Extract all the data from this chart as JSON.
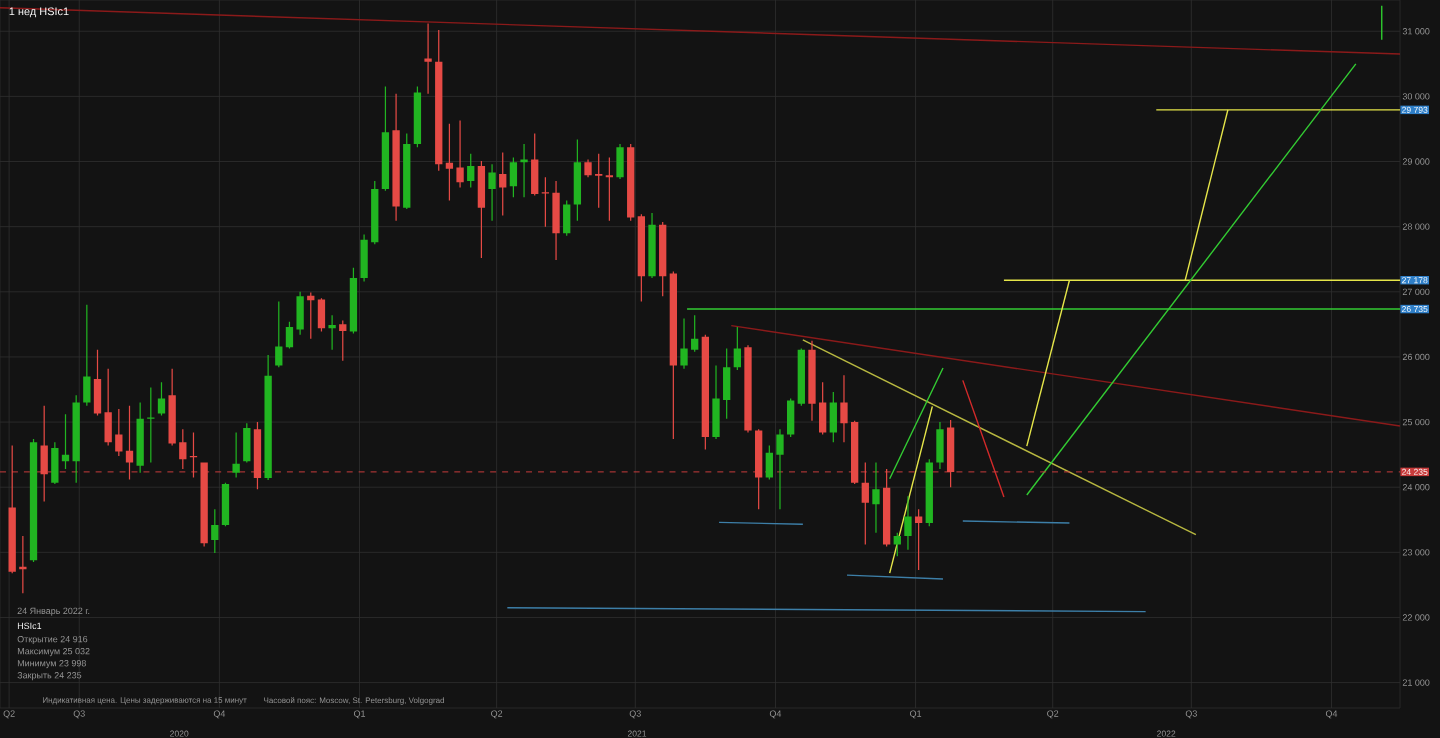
{
  "chart_data": {
    "type": "candlestick",
    "title": "1 нед HSIc1",
    "x": [
      "2020-05-18",
      "2020-05-25",
      "2020-06-01",
      "2020-06-08",
      "2020-06-15",
      "2020-06-22",
      "2020-06-29",
      "2020-07-06",
      "2020-07-13",
      "2020-07-20",
      "2020-07-27",
      "2020-08-03",
      "2020-08-10",
      "2020-08-17",
      "2020-08-24",
      "2020-08-31",
      "2020-09-07",
      "2020-09-14",
      "2020-09-21",
      "2020-09-28",
      "2020-10-05",
      "2020-10-12",
      "2020-10-19",
      "2020-10-26",
      "2020-11-02",
      "2020-11-09",
      "2020-11-16",
      "2020-11-23",
      "2020-11-30",
      "2020-12-07",
      "2020-12-14",
      "2020-12-21",
      "2020-12-28",
      "2021-01-04",
      "2021-01-11",
      "2021-01-18",
      "2021-01-25",
      "2021-02-01",
      "2021-02-08",
      "2021-02-15",
      "2021-02-22",
      "2021-03-01",
      "2021-03-08",
      "2021-03-15",
      "2021-03-22",
      "2021-03-29",
      "2021-04-05",
      "2021-04-12",
      "2021-04-19",
      "2021-04-26",
      "2021-05-03",
      "2021-05-10",
      "2021-05-17",
      "2021-05-24",
      "2021-05-31",
      "2021-06-07",
      "2021-06-14",
      "2021-06-21",
      "2021-06-28",
      "2021-07-05",
      "2021-07-12",
      "2021-07-19",
      "2021-07-26",
      "2021-08-02",
      "2021-08-09",
      "2021-08-16",
      "2021-08-23",
      "2021-08-30",
      "2021-09-06",
      "2021-09-13",
      "2021-09-20",
      "2021-09-27",
      "2021-10-04",
      "2021-10-11",
      "2021-10-18",
      "2021-10-25",
      "2021-11-01",
      "2021-11-08",
      "2021-11-15",
      "2021-11-22",
      "2021-11-29",
      "2021-12-06",
      "2021-12-13",
      "2021-12-20",
      "2021-12-27",
      "2022-01-03",
      "2022-01-10",
      "2022-01-17",
      "2022-01-24"
    ],
    "ohlc": [
      [
        23690,
        24640,
        22680,
        22700
      ],
      [
        22780,
        23250,
        22370,
        22740
      ],
      [
        22880,
        24740,
        22850,
        24690
      ],
      [
        24640,
        25250,
        23780,
        24200
      ],
      [
        24070,
        24690,
        24050,
        24600
      ],
      [
        24400,
        25120,
        24280,
        24500
      ],
      [
        24400,
        25410,
        24070,
        25300
      ],
      [
        25300,
        26800,
        25250,
        25700
      ],
      [
        25660,
        26110,
        25100,
        25130
      ],
      [
        25150,
        25820,
        24640,
        24690
      ],
      [
        24810,
        25200,
        24480,
        24550
      ],
      [
        24560,
        25250,
        24120,
        24380
      ],
      [
        24330,
        25300,
        24220,
        25050
      ],
      [
        25050,
        25530,
        24380,
        25070
      ],
      [
        25130,
        25610,
        25100,
        25360
      ],
      [
        25410,
        25820,
        24640,
        24670
      ],
      [
        24690,
        24890,
        24280,
        24430
      ],
      [
        24480,
        24840,
        24150,
        24460
      ],
      [
        24380,
        24380,
        23090,
        23140
      ],
      [
        23190,
        23660,
        22990,
        23420
      ],
      [
        23420,
        24070,
        23400,
        24050
      ],
      [
        24220,
        24840,
        24150,
        24360
      ],
      [
        24400,
        24980,
        24380,
        24910
      ],
      [
        24890,
        25000,
        23970,
        24140
      ],
      [
        24140,
        26030,
        24110,
        25710
      ],
      [
        25870,
        26850,
        25840,
        26160
      ],
      [
        26150,
        26540,
        26130,
        26460
      ],
      [
        26420,
        27000,
        26340,
        26930
      ],
      [
        26940,
        26990,
        26280,
        26870
      ],
      [
        26880,
        26900,
        26390,
        26440
      ],
      [
        26440,
        26640,
        26110,
        26490
      ],
      [
        26500,
        26560,
        25940,
        26400
      ],
      [
        26390,
        27370,
        26360,
        27210
      ],
      [
        27210,
        27880,
        27160,
        27800
      ],
      [
        27760,
        28700,
        27730,
        28580
      ],
      [
        28580,
        30150,
        28550,
        29450
      ],
      [
        29480,
        30040,
        28090,
        28310
      ],
      [
        28290,
        29430,
        28270,
        29270
      ],
      [
        29270,
        30150,
        29220,
        30060
      ],
      [
        30580,
        31120,
        30040,
        30530
      ],
      [
        30530,
        31020,
        28860,
        28960
      ],
      [
        28980,
        29580,
        28400,
        28890
      ],
      [
        28910,
        29630,
        28600,
        28680
      ],
      [
        28700,
        29120,
        28600,
        28930
      ],
      [
        28930,
        29010,
        27520,
        28290
      ],
      [
        28580,
        28960,
        28090,
        28830
      ],
      [
        28810,
        29140,
        28170,
        28600
      ],
      [
        28620,
        29060,
        28450,
        28990
      ],
      [
        28990,
        29270,
        28450,
        29030
      ],
      [
        29030,
        29430,
        28480,
        28500
      ],
      [
        28530,
        28760,
        28000,
        28510
      ],
      [
        28520,
        28700,
        27490,
        27900
      ],
      [
        27900,
        28400,
        27860,
        28340
      ],
      [
        28340,
        29340,
        28090,
        28990
      ],
      [
        28990,
        29030,
        28760,
        28790
      ],
      [
        28810,
        29120,
        28290,
        28780
      ],
      [
        28790,
        29060,
        28090,
        28760
      ],
      [
        28760,
        29270,
        28730,
        29220
      ],
      [
        29220,
        29270,
        28090,
        28140
      ],
      [
        28160,
        28190,
        26850,
        27240
      ],
      [
        27240,
        28210,
        27210,
        28030
      ],
      [
        28030,
        28070,
        26930,
        27240
      ],
      [
        27280,
        27310,
        24740,
        25870
      ],
      [
        25870,
        26590,
        25820,
        26130
      ],
      [
        26110,
        26640,
        26080,
        26280
      ],
      [
        26310,
        26340,
        24580,
        24770
      ],
      [
        24770,
        25870,
        24740,
        25360
      ],
      [
        25340,
        26130,
        25050,
        25840
      ],
      [
        25840,
        26460,
        25800,
        26130
      ],
      [
        26150,
        26180,
        24840,
        24870
      ],
      [
        24870,
        24890,
        23660,
        24150
      ],
      [
        24150,
        24640,
        24120,
        24530
      ],
      [
        24500,
        24890,
        23660,
        24810
      ],
      [
        24810,
        25360,
        24770,
        25330
      ],
      [
        25280,
        26130,
        25250,
        26110
      ],
      [
        26110,
        26250,
        25020,
        25280
      ],
      [
        25300,
        25610,
        24810,
        24840
      ],
      [
        24840,
        25460,
        24690,
        25300
      ],
      [
        25300,
        25720,
        24690,
        24980
      ],
      [
        25000,
        25020,
        24050,
        24070
      ],
      [
        24070,
        24380,
        23120,
        23760
      ],
      [
        23740,
        24380,
        23300,
        23970
      ],
      [
        23990,
        24280,
        23090,
        23120
      ],
      [
        23120,
        23300,
        22940,
        23250
      ],
      [
        23250,
        23860,
        23040,
        23550
      ],
      [
        23550,
        23660,
        22730,
        23450
      ],
      [
        23450,
        24430,
        23400,
        24380
      ],
      [
        24380,
        25000,
        24280,
        24890
      ],
      [
        24916,
        25032,
        23998,
        24235
      ]
    ],
    "colors": [
      "#e64a45",
      "#e64a45",
      "#21b521",
      "#e64a45",
      "#21b521",
      "#21b521",
      "#21b521",
      "#21b521",
      "#e64a45",
      "#e64a45",
      "#e64a45",
      "#e64a45",
      "#21b521",
      "#21b521",
      "#21b521",
      "#e64a45",
      "#e64a45",
      "#e64a45",
      "#e64a45",
      "#21b521",
      "#21b521",
      "#21b521",
      "#21b521",
      "#e64a45",
      "#21b521",
      "#21b521",
      "#21b521",
      "#21b521",
      "#e64a45",
      "#e64a45",
      "#21b521",
      "#e64a45",
      "#21b521",
      "#21b521",
      "#21b521",
      "#21b521",
      "#e64a45",
      "#21b521",
      "#21b521",
      "#e64a45",
      "#e64a45",
      "#e64a45",
      "#e64a45",
      "#21b521",
      "#e64a45",
      "#21b521",
      "#e64a45",
      "#21b521",
      "#21b521",
      "#e64a45",
      "#e64a45",
      "#e64a45",
      "#21b521",
      "#21b521",
      "#e64a45",
      "#e64a45",
      "#e64a45",
      "#21b521",
      "#e64a45",
      "#e64a45",
      "#21b521",
      "#e64a45",
      "#e64a45",
      "#21b521",
      "#21b521",
      "#e64a45",
      "#21b521",
      "#21b521",
      "#21b521",
      "#e64a45",
      "#e64a45",
      "#21b521",
      "#21b521",
      "#21b521",
      "#21b521",
      "#e64a45",
      "#e64a45",
      "#21b521",
      "#e64a45",
      "#e64a45",
      "#e64a45",
      "#21b521",
      "#e64a45",
      "#21b521",
      "#21b521",
      "#e64a45",
      "#21b521",
      "#21b521",
      "#e64a45"
    ],
    "series": [
      {
        "type": "line",
        "color": "#8b1a1a",
        "x": [
          "2020-05-10",
          "2022-11-15"
        ],
        "values": [
          31360,
          30650
        ]
      },
      {
        "type": "line",
        "color": "#2ecc2e",
        "x": [
          "2022-11-03",
          "2022-11-03"
        ],
        "values": [
          31390,
          30870
        ]
      },
      {
        "type": "line",
        "color": "#8b1a1a",
        "x": [
          "2021-09-02",
          "2022-11-15"
        ],
        "values": [
          26480,
          24940
        ]
      },
      {
        "type": "line",
        "color": "#33cc33",
        "name": "26 735",
        "x": [
          "2021-08-04",
          "2022-11-15"
        ],
        "values": [
          26735,
          26735
        ]
      },
      {
        "type": "line",
        "color": "#e6e64a",
        "name": "27 178",
        "x": [
          "2022-02-28",
          "2022-11-15"
        ],
        "values": [
          27178,
          27178
        ]
      },
      {
        "type": "line",
        "color": "#e6e64a",
        "name": "29 793",
        "x": [
          "2022-06-08",
          "2022-11-15"
        ],
        "values": [
          29793,
          29793
        ]
      },
      {
        "type": "line",
        "color": "#e6e64a",
        "x": [
          "2022-03-15",
          "2022-04-12"
        ],
        "values": [
          24630,
          27178
        ]
      },
      {
        "type": "line",
        "color": "#e6e64a",
        "x": [
          "2022-06-27",
          "2022-07-25"
        ],
        "values": [
          27178,
          29793
        ]
      },
      {
        "type": "line",
        "color": "#e6e64a",
        "x": [
          "2021-12-15",
          "2022-01-12"
        ],
        "values": [
          22680,
          25240
        ]
      },
      {
        "type": "line",
        "color": "#b8b840",
        "x": [
          "2021-10-19",
          "2022-07-04"
        ],
        "values": [
          26260,
          23270
        ]
      },
      {
        "type": "line",
        "color": "#33cc33",
        "x": [
          "2022-03-15",
          "2022-10-17"
        ],
        "values": [
          23880,
          30500
        ]
      },
      {
        "type": "line",
        "color": "#33cc33",
        "x": [
          "2021-12-15",
          "2022-01-19"
        ],
        "values": [
          24130,
          25830
        ]
      },
      {
        "type": "line",
        "color": "#d42a2a",
        "x": [
          "2022-02-01",
          "2022-02-28"
        ],
        "values": [
          25640,
          23850
        ]
      },
      {
        "type": "line",
        "color": "#3d7fa8",
        "x": [
          "2021-08-25",
          "2021-10-19"
        ],
        "values": [
          23460,
          23430
        ]
      },
      {
        "type": "line",
        "color": "#3d7fa8",
        "x": [
          "2021-11-17",
          "2022-01-19"
        ],
        "values": [
          22650,
          22590
        ]
      },
      {
        "type": "line",
        "color": "#3d7fa8",
        "x": [
          "2022-02-01",
          "2022-04-12"
        ],
        "values": [
          23480,
          23450
        ]
      },
      {
        "type": "line",
        "color": "#3d7fa8",
        "x": [
          "2021-04-08",
          "2022-06-01"
        ],
        "values": [
          22150,
          22090
        ]
      }
    ],
    "ref_lines": [
      {
        "axis": "y",
        "value": 24235,
        "label": "24 235",
        "color": "#c83c3c",
        "line_style": "dashed"
      }
    ],
    "xlim": [
      "2020-05-10",
      "2022-11-15"
    ],
    "ylim": [
      20610,
      31480
    ],
    "xticks": [
      {
        "value": "2020-05-16",
        "label": "Q2"
      },
      {
        "value": "2020-07-01",
        "label": "Q3"
      },
      {
        "value": "2020-10-01",
        "label": "Q4"
      },
      {
        "value": "2021-01-01",
        "label": "Q1"
      },
      {
        "value": "2021-04-01",
        "label": "Q2"
      },
      {
        "value": "2021-07-01",
        "label": "Q3"
      },
      {
        "value": "2021-10-01",
        "label": "Q4"
      },
      {
        "value": "2022-01-01",
        "label": "Q1"
      },
      {
        "value": "2022-04-01",
        "label": "Q2"
      },
      {
        "value": "2022-07-01",
        "label": "Q3"
      },
      {
        "value": "2022-10-01",
        "label": "Q4"
      }
    ],
    "yticks": [
      {
        "value": 21000,
        "label": "21 000"
      },
      {
        "value": 22000,
        "label": "22 000"
      },
      {
        "value": 23000,
        "label": "23 000"
      },
      {
        "value": 24000,
        "label": "24 000"
      },
      {
        "value": 25000,
        "label": "25 000"
      },
      {
        "value": 26000,
        "label": "26 000"
      },
      {
        "value": 27000,
        "label": "27 000"
      },
      {
        "value": 28000,
        "label": "28 000"
      },
      {
        "value": 29000,
        "label": "29 000"
      },
      {
        "value": 30000,
        "label": "30 000"
      },
      {
        "value": 31000,
        "label": "31 000"
      }
    ],
    "grid": true,
    "annotations": [
      "24 Январь 2022 г.",
      "HSIc1",
      "Открытие 24 916",
      "Максимум 25 032",
      "Минимум 23 998",
      "Закрыть 24 235",
      "Индикативная цена. Цены задерживаются на 15 минут",
      "Часовой пояс: Moscow, St. Petersburg, Volgograd",
      "2020",
      "2021",
      "2022"
    ]
  }
}
